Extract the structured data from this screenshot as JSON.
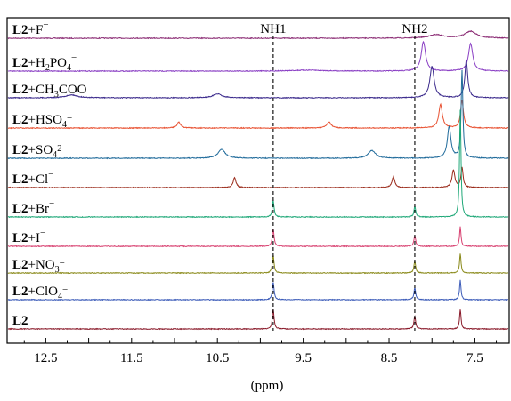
{
  "chart_data": {
    "type": "line",
    "title": "",
    "xlabel": "(ppm)",
    "ylabel": "",
    "x_reversed": true,
    "xlim": [
      12.95,
      7.1
    ],
    "xticks": [
      {
        "v": 12.5,
        "label": "12.5"
      },
      {
        "v": 11.5,
        "label": "11.5"
      },
      {
        "v": 10.5,
        "label": "10.5"
      },
      {
        "v": 9.5,
        "label": "9.5"
      },
      {
        "v": 8.5,
        "label": "8.5"
      },
      {
        "v": 7.5,
        "label": "7.5"
      }
    ],
    "annotations": [
      {
        "label": "NH1",
        "x": 9.85
      },
      {
        "label": "NH2",
        "x": 8.2
      }
    ],
    "series": [
      {
        "label_bold": "L2",
        "label_rest": "+F",
        "label_sup": "−",
        "label_sub": "",
        "label_tail": "",
        "color": "#8a2a73",
        "peaks": [
          {
            "x": 7.95,
            "h": 0.18,
            "w": 0.1
          },
          {
            "x": 7.55,
            "h": 0.35,
            "w": 0.08
          }
        ]
      },
      {
        "label_bold": "L2",
        "label_rest": "+H",
        "label_sub": "2",
        "label_tail": "PO",
        "label_sub2": "4",
        "label_sup": "−",
        "color": "#8a3fc4",
        "peaks": [
          {
            "x": 9.45,
            "h": 0.05,
            "w": 0.2
          },
          {
            "x": 8.1,
            "h": 1.5,
            "w": 0.03
          },
          {
            "x": 7.55,
            "h": 1.4,
            "w": 0.03
          }
        ]
      },
      {
        "label_bold": "L2",
        "label_rest": "+CH",
        "label_sub": "3",
        "label_tail": "COO",
        "label_sup": "−",
        "color": "#3b2a8c",
        "peaks": [
          {
            "x": 12.2,
            "h": 0.15,
            "w": 0.08
          },
          {
            "x": 10.5,
            "h": 0.2,
            "w": 0.06
          },
          {
            "x": 8.0,
            "h": 1.6,
            "w": 0.03
          },
          {
            "x": 7.6,
            "h": 1.9,
            "w": 0.02
          }
        ]
      },
      {
        "label_bold": "L2",
        "label_rest": "+HSO",
        "label_sub": "4",
        "label_tail": "",
        "label_sup": "−",
        "color": "#e85030",
        "peaks": [
          {
            "x": 10.95,
            "h": 0.3,
            "w": 0.025
          },
          {
            "x": 9.2,
            "h": 0.3,
            "w": 0.03
          },
          {
            "x": 7.9,
            "h": 1.2,
            "w": 0.025
          },
          {
            "x": 7.65,
            "h": 1.4,
            "w": 0.02
          }
        ]
      },
      {
        "label_bold": "L2",
        "label_rest": "+SO",
        "label_sub": "4",
        "label_tail": "",
        "label_sup": "2−",
        "color": "#1f6a9a",
        "peaks": [
          {
            "x": 10.45,
            "h": 0.45,
            "w": 0.05
          },
          {
            "x": 8.7,
            "h": 0.4,
            "w": 0.05
          },
          {
            "x": 7.8,
            "h": 1.6,
            "w": 0.025
          },
          {
            "x": 7.65,
            "h": 4.5,
            "w": 0.012
          }
        ]
      },
      {
        "label_bold": "L2",
        "label_rest": "+Cl",
        "label_sub": "",
        "label_tail": "",
        "label_sup": "−",
        "color": "#9a2a1a",
        "peaks": [
          {
            "x": 10.3,
            "h": 0.5,
            "w": 0.02
          },
          {
            "x": 8.45,
            "h": 0.55,
            "w": 0.02
          },
          {
            "x": 7.75,
            "h": 0.9,
            "w": 0.02
          },
          {
            "x": 7.65,
            "h": 1.0,
            "w": 0.015
          }
        ]
      },
      {
        "label_bold": "L2",
        "label_rest": "+Br",
        "label_sub": "",
        "label_tail": "",
        "label_sup": "−",
        "color": "#1fa878",
        "peaks": [
          {
            "x": 9.85,
            "h": 0.85,
            "w": 0.012
          },
          {
            "x": 8.2,
            "h": 0.55,
            "w": 0.012
          },
          {
            "x": 7.67,
            "h": 5.5,
            "w": 0.01
          }
        ]
      },
      {
        "label_bold": "L2",
        "label_rest": "+I",
        "label_sub": "",
        "label_tail": "",
        "label_sup": "−",
        "color": "#d84070",
        "peaks": [
          {
            "x": 9.85,
            "h": 0.9,
            "w": 0.012
          },
          {
            "x": 8.2,
            "h": 0.55,
            "w": 0.012
          },
          {
            "x": 7.67,
            "h": 1.0,
            "w": 0.01
          }
        ]
      },
      {
        "label_bold": "L2",
        "label_rest": "+NO",
        "label_sub": "3",
        "label_tail": "",
        "label_sup": "−",
        "color": "#8a8a1a",
        "peaks": [
          {
            "x": 9.85,
            "h": 0.9,
            "w": 0.012
          },
          {
            "x": 8.2,
            "h": 0.6,
            "w": 0.012
          },
          {
            "x": 7.67,
            "h": 1.0,
            "w": 0.01
          }
        ]
      },
      {
        "label_bold": "L2",
        "label_rest": "+ClO",
        "label_sub": "4",
        "label_tail": "",
        "label_sup": "−",
        "color": "#3a5ab8",
        "peaks": [
          {
            "x": 9.85,
            "h": 0.9,
            "w": 0.012
          },
          {
            "x": 8.2,
            "h": 0.6,
            "w": 0.012
          },
          {
            "x": 7.67,
            "h": 1.0,
            "w": 0.01
          }
        ]
      },
      {
        "label_bold": "L2",
        "label_rest": "",
        "label_sub": "",
        "label_tail": "",
        "label_sup": "",
        "color": "#8a1a2a",
        "peaks": [
          {
            "x": 9.85,
            "h": 1.0,
            "w": 0.012
          },
          {
            "x": 8.2,
            "h": 0.65,
            "w": 0.012
          },
          {
            "x": 7.67,
            "h": 1.0,
            "w": 0.01
          }
        ]
      }
    ]
  }
}
